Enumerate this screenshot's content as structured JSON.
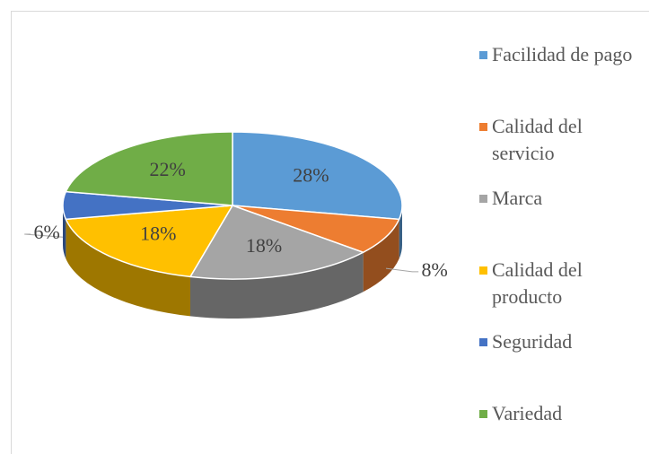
{
  "chart_data": {
    "type": "pie3d",
    "categories": [
      "Facilidad de pago",
      "Calidad del servicio",
      "Marca",
      "Calidad del producto",
      "Seguridad",
      "Variedad"
    ],
    "values": [
      28,
      8,
      18,
      18,
      6,
      22
    ],
    "value_labels": [
      "28%",
      "8%",
      "18%",
      "18%",
      "6%",
      "22%"
    ],
    "colors": [
      "#5b9bd5",
      "#ed7d31",
      "#a5a5a5",
      "#ffc000",
      "#4472c4",
      "#70ad47"
    ],
    "legend": "right"
  }
}
